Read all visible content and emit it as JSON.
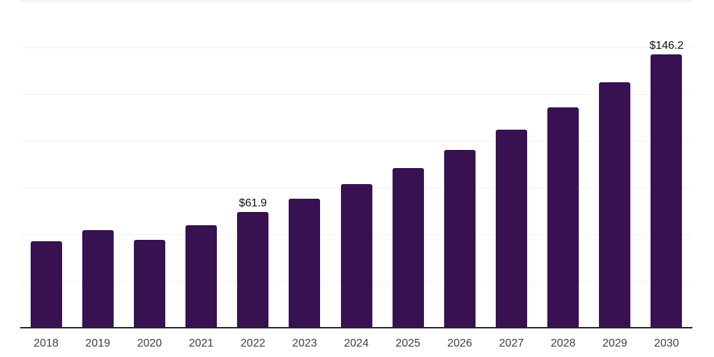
{
  "page": {
    "background_color": "#ffffff"
  },
  "chart_data": {
    "type": "bar",
    "title": "",
    "xlabel": "",
    "ylabel": "",
    "categories": [
      "2018",
      "2019",
      "2020",
      "2021",
      "2022",
      "2023",
      "2024",
      "2025",
      "2026",
      "2027",
      "2028",
      "2029",
      "2030"
    ],
    "values": [
      46.3,
      52.4,
      47.2,
      54.9,
      61.9,
      69.0,
      76.8,
      85.6,
      95.3,
      106.1,
      118.0,
      131.5,
      146.2
    ],
    "data_labels": [
      "",
      "",
      "",
      "",
      "$61.9",
      "",
      "",
      "",
      "",
      "",
      "",
      "",
      "$146.2"
    ],
    "ylim": [
      0,
      175
    ],
    "gridline_step": 25,
    "grid": true,
    "legend_position": "none",
    "bar_color": "#371150",
    "grid_color": "#f2f2f2",
    "top_band_color": "#f5f5f5",
    "axis_color": "#252525",
    "tick_label_color": "#3f3f3f",
    "data_label_color": "#0f0f0f"
  }
}
